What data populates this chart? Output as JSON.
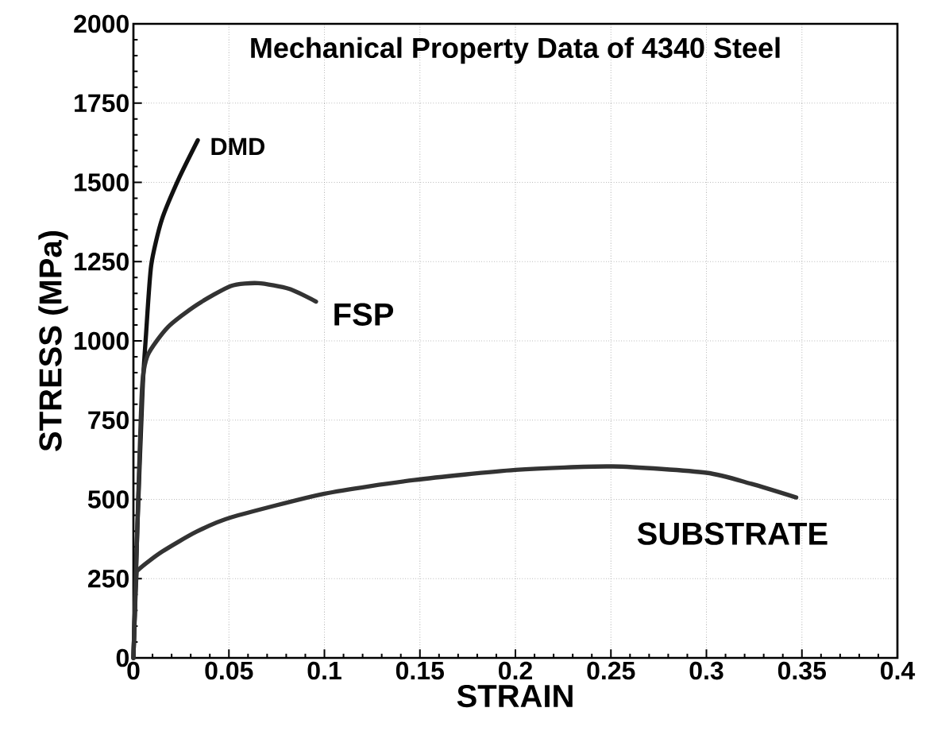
{
  "chart_data": {
    "type": "line",
    "title": "Mechanical Property Data of 4340 Steel",
    "xlabel": "STRAIN",
    "ylabel": "STRESS (MPa)",
    "xlim": [
      0,
      0.4
    ],
    "ylim": [
      0,
      2000
    ],
    "xticks": [
      0,
      0.05,
      0.1,
      0.15,
      0.2,
      0.25,
      0.3,
      0.35,
      0.4
    ],
    "yticks": [
      0,
      250,
      500,
      750,
      1000,
      1250,
      1500,
      1750,
      2000
    ],
    "grid": true,
    "marker": "none",
    "line_style": "solid",
    "series": [
      {
        "name": "DMD",
        "color": "#111111",
        "x": [
          0,
          0.002,
          0.0048,
          0.0066,
          0.0093,
          0.0148,
          0.0237,
          0.0337
        ],
        "values": [
          0,
          400,
          847,
          1020,
          1238,
          1381,
          1511,
          1633
        ]
      },
      {
        "name": "FSP",
        "color": "#333333",
        "x": [
          0,
          0.002,
          0.0045,
          0.0075,
          0.018,
          0.033,
          0.051,
          0.0653,
          0.0815,
          0.0956
        ],
        "values": [
          0,
          400,
          850,
          955,
          1043,
          1113,
          1173,
          1182,
          1164,
          1124
        ]
      },
      {
        "name": "SUBSTRATE",
        "color": "#333333",
        "x": [
          0,
          0.0015,
          0.003,
          0.015,
          0.033,
          0.051,
          0.1,
          0.147,
          0.2,
          0.251,
          0.3,
          0.3235,
          0.347
        ],
        "values": [
          0,
          250,
          280,
          335,
          398,
          443,
          518,
          561,
          593,
          604,
          584,
          549,
          506
        ]
      }
    ]
  }
}
